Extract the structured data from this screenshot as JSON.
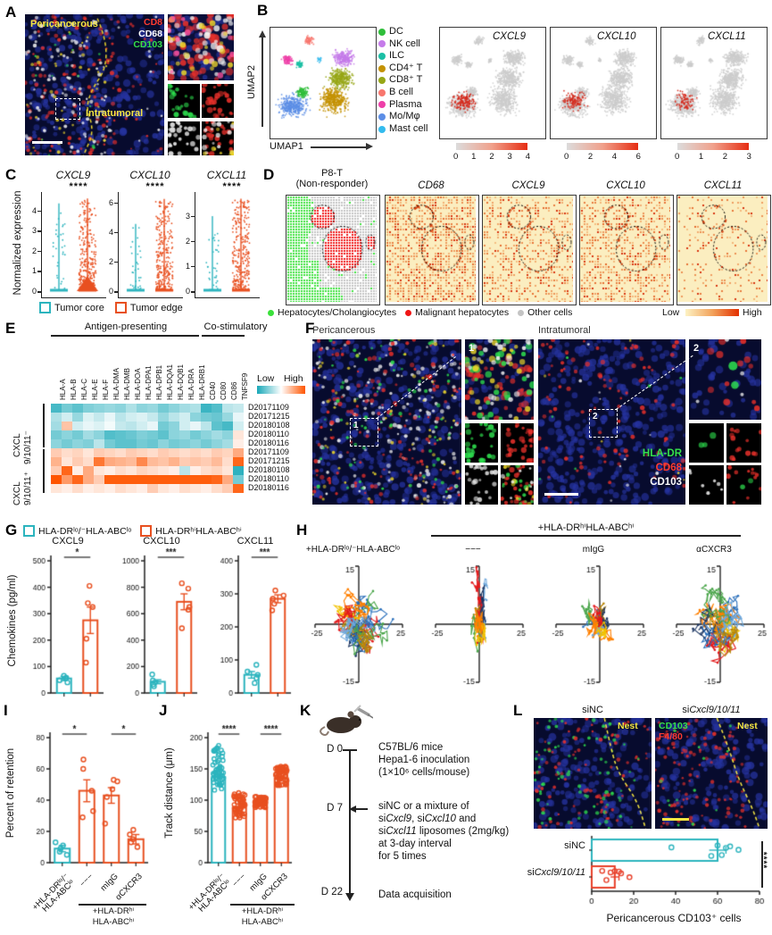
{
  "panelA": {
    "label": "A",
    "region1": "Pericancerous",
    "region2": "Intratumoral",
    "markers": [
      {
        "name": "CD8",
        "color": "#ff3b30"
      },
      {
        "name": "CD68",
        "color": "#ffffff"
      },
      {
        "name": "CD103",
        "color": "#35e04a"
      }
    ]
  },
  "panelB": {
    "label": "B",
    "x_axis": "UMAP1",
    "y_axis": "UMAP2",
    "legend": [
      {
        "name": "DC",
        "color": "#2fbe3a"
      },
      {
        "name": "NK cell",
        "color": "#c57bea"
      },
      {
        "name": "ILC",
        "color": "#1bbfa5"
      },
      {
        "name": "CD4⁺ T",
        "color": "#c49202"
      },
      {
        "name": "CD8⁺ T",
        "color": "#97a716"
      },
      {
        "name": "B cell",
        "color": "#f8766d"
      },
      {
        "name": "Plasma",
        "color": "#ee3fa8"
      },
      {
        "name": "Mo/Mφ",
        "color": "#5c8ee6"
      },
      {
        "name": "Mast cell",
        "color": "#33bbee"
      }
    ],
    "features": [
      {
        "title": "CXCL9",
        "ticks": [
          "0",
          "1",
          "2",
          "3",
          "4"
        ]
      },
      {
        "title": "CXCL10",
        "ticks": [
          "0",
          "2",
          "4",
          "6"
        ]
      },
      {
        "title": "CXCL11",
        "ticks": [
          "0",
          "1",
          "2",
          "3"
        ]
      }
    ]
  },
  "panelC": {
    "label": "C",
    "ylabel": "Normalized expression",
    "legend": [
      {
        "name": "Tumor core",
        "color": "#2cb4be"
      },
      {
        "name": "Tumor edge",
        "color": "#e85020"
      }
    ]
  },
  "panelD": {
    "label": "D",
    "title1": "P8-T",
    "title2": "(Non-responder)",
    "maps": [
      "CD68",
      "CXCL9",
      "CXCL10",
      "CXCL11"
    ],
    "legend": [
      {
        "name": "Hepatocytes/Cholangiocytes",
        "color": "#3be13b"
      },
      {
        "name": "Malignant hepatocytes",
        "color": "#f01515"
      },
      {
        "name": "Other cells",
        "color": "#c4c4c4"
      }
    ],
    "scale_low": "Low",
    "scale_high": "High"
  },
  "panelE": {
    "label": "E",
    "group1": "Antigen-presenting",
    "group2": "Co-stimulatory",
    "columns": [
      "HLA-A",
      "HLA-B",
      "HLA-C",
      "HLA-E",
      "HLA-F",
      "HLA-DMA",
      "HLA-DMB",
      "HLA-DOA",
      "HLA-DPA1",
      "HLA-DPB1",
      "HLA-DQA1",
      "HLA-DQB1",
      "HLA-DRA",
      "HLA-DRB1",
      "CD40",
      "CD80",
      "CD86",
      "TNFSF9"
    ],
    "row_group1a": "CXCL",
    "row_group1b": "9/10/11⁻",
    "row_group2a": "CXCL",
    "row_group2b": "9/10/11⁺",
    "rows": [
      "D20171109",
      "D20171215",
      "D20180108",
      "D20180110",
      "D20180116",
      "D20171109",
      "D20171215",
      "D20180108",
      "D20180110",
      "D20180116"
    ],
    "legend_low": "Low",
    "legend_high": "High",
    "matrix": [
      [
        -0.8,
        -0.6,
        -0.7,
        -0.55,
        -0.5,
        -0.45,
        -0.5,
        -0.35,
        -0.5,
        -0.45,
        -0.6,
        -0.5,
        -0.4,
        -0.35,
        -0.85,
        -0.75,
        -0.3,
        -0.25
      ],
      [
        -0.35,
        -0.2,
        -0.45,
        -0.15,
        -0.25,
        -0.1,
        -0.3,
        -0.2,
        -0.15,
        -0.25,
        -0.45,
        -0.3,
        -0.2,
        -0.5,
        -0.6,
        -0.65,
        -0.45,
        -0.1
      ],
      [
        -0.4,
        0.35,
        -0.2,
        -0.1,
        -0.15,
        -0.05,
        -0.25,
        -0.3,
        -0.2,
        -0.1,
        -0.6,
        -0.5,
        -0.2,
        -0.1,
        -0.3,
        -0.7,
        -0.8,
        -0.2
      ],
      [
        -0.6,
        -0.5,
        -0.6,
        -0.4,
        -0.5,
        -0.75,
        -0.7,
        -0.65,
        -0.55,
        -0.6,
        -0.7,
        -0.5,
        -0.45,
        -0.6,
        -0.5,
        -0.4,
        -0.5,
        0.15
      ],
      [
        -0.5,
        -0.6,
        -0.5,
        -0.55,
        -0.3,
        -0.6,
        -0.7,
        -0.7,
        -0.6,
        -0.65,
        -0.5,
        -0.6,
        -0.55,
        -0.5,
        -0.6,
        -0.5,
        -0.4,
        0.1
      ],
      [
        0.3,
        0.2,
        0.25,
        0.15,
        0.3,
        0.25,
        0.2,
        0.3,
        0.25,
        0.2,
        0.3,
        0.25,
        0.2,
        0.25,
        0.2,
        0.3,
        0.25,
        0.5
      ],
      [
        0.45,
        0.15,
        0.3,
        0.2,
        0.8,
        0.5,
        0.45,
        0.4,
        0.7,
        0.4,
        0.35,
        0.45,
        0.3,
        0.35,
        0.3,
        0.4,
        0.2,
        0.9
      ],
      [
        0.3,
        0.9,
        0.1,
        0.5,
        0.15,
        0.1,
        0.2,
        0.15,
        0.25,
        0.2,
        0.15,
        0.1,
        -0.3,
        0.1,
        0.2,
        0.25,
        0.15,
        -0.9
      ],
      [
        1,
        0.6,
        0.9,
        0.5,
        0.3,
        0.95,
        0.95,
        0.95,
        0.95,
        0.95,
        0.95,
        0.95,
        0.95,
        0.95,
        0.95,
        0.9,
        0.5,
        -0.6
      ],
      [
        0.15,
        0.1,
        0.2,
        0.1,
        0.15,
        0.1,
        0.2,
        0.15,
        0.1,
        0.3,
        0.15,
        0.1,
        0.2,
        0.15,
        0.1,
        0.2,
        0.3,
        0.9
      ]
    ]
  },
  "panelF": {
    "label": "F",
    "region1": "Pericancerous",
    "region2": "Intratumoral",
    "inset1": "1",
    "inset2": "2",
    "markers": [
      {
        "name": "HLA-DR",
        "color": "#35e04a"
      },
      {
        "name": "CD68",
        "color": "#ff3b30"
      },
      {
        "name": "CD103",
        "color": "#ffffff"
      }
    ]
  },
  "panelG": {
    "label": "G",
    "ylabel": "Chemokines (pg/ml)",
    "legend": [
      {
        "name": "HLA-DRˡᵒ/⁻HLA-ABCˡᵒ",
        "color": "#2cb4be"
      },
      {
        "name": "HLA-DRʰⁱHLA-ABCʰⁱ",
        "color": "#e85020"
      }
    ]
  },
  "panelH": {
    "label": "H",
    "group_header": "+HLA-DRʰⁱHLA-ABCʰⁱ",
    "titles": [
      "+HLA-DRˡᵒ/⁻HLA-ABCˡᵒ",
      "−−−",
      "mIgG",
      "αCXCR3"
    ]
  },
  "panelI": {
    "label": "I",
    "ylabel": "Percent of retention",
    "cat1a": "+HLA-DRˡᵒ/⁻",
    "cat1b": "HLA-ABCˡᵒ",
    "cat2": "−−−",
    "cat3": "mIgG",
    "cat4": "αCXCR3",
    "group1": "+HLA-DRʰⁱ",
    "group2": "HLA-ABCʰⁱ"
  },
  "panelJ": {
    "label": "J",
    "ylabel": "Track distance (μm)",
    "cat1a": "+HLA-DRˡᵒ/⁻",
    "cat1b": "HLA-ABCˡᵒ",
    "cat2": "−−−",
    "cat3": "mIgG",
    "cat4": "αCXCR3",
    "group1": "+HLA-DRʰⁱ",
    "group2": "HLA-ABCʰⁱ"
  },
  "panelK": {
    "label": "K",
    "t0": "D 0",
    "t7": "D 7",
    "t22": "D 22",
    "d0_line1": "C57BL/6 mice",
    "d0_line2": "Hepa1-6 inoculation",
    "d0_line3": "(1×10⁶ cells/mouse)",
    "d7_line1": "siNC or a mixture of",
    "d7_line2_parts": [
      "si",
      "Cxcl9",
      ", si",
      "Cxcl10",
      " and"
    ],
    "d7_line3_parts": [
      "si",
      "Cxcl11",
      " liposomes (2mg/kg)"
    ],
    "d7_line4": "at 3-day interval",
    "d7_line5": "for 5 times",
    "d22_text": "Data acquisition"
  },
  "panelL": {
    "label": "L",
    "title1": "siNC",
    "title2_parts": [
      "si",
      "Cxcl9/10/11"
    ],
    "img1_markers": [
      {
        "name": "Nest",
        "color": "#f5e642"
      }
    ],
    "img2_markers": [
      {
        "name": "CD103",
        "color": "#35e04a"
      },
      {
        "name": "F4/80",
        "color": "#ff3b30"
      },
      {
        "name": "Nest",
        "color": "#f5e642"
      }
    ],
    "cat1": "siNC",
    "cat2_parts": [
      "si",
      "Cxcl9/10/11"
    ],
    "xlabel": "Pericancerous CD103⁺ cells",
    "sig": "****"
  },
  "chart_data": {
    "C": {
      "type": "violin",
      "ylabel": "Normalized expression",
      "groups": [
        "Tumor core",
        "Tumor edge"
      ],
      "group_colors": [
        "#2cb4be",
        "#e85020"
      ],
      "subplots": [
        {
          "title": "CXCL9",
          "ylim": [
            0,
            4.6
          ],
          "yticks": [
            0,
            1,
            2,
            3,
            4
          ],
          "sig": "****",
          "core_max": 4.3,
          "edge_max": 4.55
        },
        {
          "title": "CXCL10",
          "ylim": [
            0,
            6.3
          ],
          "yticks": [
            0,
            2,
            4,
            6
          ],
          "sig": "****",
          "core_max": 4.5,
          "edge_max": 6.2
        },
        {
          "title": "CXCL11",
          "ylim": [
            0,
            3.7
          ],
          "yticks": [
            0,
            1,
            2,
            3
          ],
          "sig": "****",
          "core_max": 2.95,
          "edge_max": 3.65
        }
      ]
    },
    "G": {
      "type": "bar",
      "ylabel": "Chemokines (pg/ml)",
      "groups": [
        "HLA-DRˡᵒ/⁻HLA-ABCˡᵒ",
        "HLA-DRʰⁱHLA-ABCʰⁱ"
      ],
      "group_colors": [
        "#2cb4be",
        "#e85020"
      ],
      "subplots": [
        {
          "title": "CXCL9",
          "ylim": [
            0,
            500
          ],
          "yticks": [
            0,
            100,
            200,
            300,
            400,
            500
          ],
          "sig": "*",
          "values": [
            55,
            275
          ],
          "sem": [
            8,
            50
          ],
          "points": [
            [
              40,
              48,
              55,
              58,
              65
            ],
            [
              115,
              205,
              325,
              340,
              405
            ]
          ]
        },
        {
          "title": "CXCL10",
          "ylim": [
            0,
            1000
          ],
          "yticks": [
            0,
            200,
            400,
            600,
            800,
            1000
          ],
          "sig": "***",
          "values": [
            85,
            690
          ],
          "sem": [
            15,
            60
          ],
          "points": [
            [
              50,
              65,
              80,
              95,
              140
            ],
            [
              490,
              630,
              650,
              790,
              830
            ]
          ]
        },
        {
          "title": "CXCL11",
          "ylim": [
            0,
            400
          ],
          "yticks": [
            0,
            100,
            200,
            300,
            400
          ],
          "sig": "***",
          "values": [
            55,
            285
          ],
          "sem": [
            10,
            12
          ],
          "points": [
            [
              30,
              45,
              55,
              65,
              85
            ],
            [
              250,
              270,
              285,
              295,
              310
            ]
          ]
        }
      ]
    },
    "H": {
      "type": "tracks",
      "xlim": [
        -25,
        25
      ],
      "ylim": [
        -15,
        15
      ],
      "subplots": [
        {
          "title": "+HLA-DRˡᵒ/⁻HLA-ABCˡᵒ",
          "spread_x": 21,
          "spread_y": 11,
          "n_tracks": 14
        },
        {
          "title": "−−−",
          "spread_x": 6,
          "spread_y": 12,
          "n_tracks": 10
        },
        {
          "title": "mIgG",
          "spread_x": 10,
          "spread_y": 7,
          "n_tracks": 10
        },
        {
          "title": "αCXCR3",
          "spread_x": 19,
          "spread_y": 11,
          "n_tracks": 14
        }
      ],
      "track_colors": [
        "#e31a1c",
        "#ff8000",
        "#2a6fbb",
        "#6fa8dc",
        "#4ca64c",
        "#b8860b",
        "#1f3864",
        "#f2c200"
      ]
    },
    "I": {
      "type": "bar",
      "ylabel": "Percent of retention",
      "ylim": [
        0,
        80
      ],
      "yticks": [
        0,
        20,
        40,
        60,
        80
      ],
      "categories": [
        "+HLA-DRˡᵒ/⁻HLA-ABCˡᵒ",
        "−−−",
        "mIgG",
        "αCXCR3"
      ],
      "bar_colors": [
        "#2cb4be",
        "#e85020",
        "#e85020",
        "#e85020"
      ],
      "values": [
        9,
        46,
        43,
        15
      ],
      "sem": [
        2,
        7,
        5,
        3
      ],
      "points": [
        [
          5,
          7,
          9,
          11,
          13
        ],
        [
          29,
          33,
          46,
          60,
          66
        ],
        [
          25,
          42,
          47,
          52,
          53
        ],
        [
          10,
          13,
          15,
          18,
          21
        ]
      ],
      "sig": [
        {
          "pair": [
            0,
            1
          ],
          "stars": "*"
        },
        {
          "pair": [
            2,
            3
          ],
          "stars": "*"
        }
      ],
      "group_label": "+HLA-DRʰⁱ HLA-ABCʰⁱ"
    },
    "J": {
      "type": "bar",
      "ylabel": "Track distance (μm)",
      "ylim": [
        0,
        200
      ],
      "yticks": [
        0,
        50,
        100,
        150,
        200
      ],
      "categories": [
        "+HLA-DRˡᵒ/⁻HLA-ABCˡᵒ",
        "−−−",
        "mIgG",
        "αCXCR3"
      ],
      "bar_colors": [
        "#2cb4be",
        "#e85020",
        "#e85020",
        "#e85020"
      ],
      "values": [
        137,
        88,
        98,
        135
      ],
      "sem": [
        3,
        2,
        1,
        2
      ],
      "point_ranges": [
        [
          108,
          190
        ],
        [
          68,
          112
        ],
        [
          88,
          106
        ],
        [
          122,
          155
        ]
      ],
      "n_points": 55,
      "sig": [
        {
          "pair": [
            0,
            1
          ],
          "stars": "****"
        },
        {
          "pair": [
            2,
            3
          ],
          "stars": "****"
        }
      ],
      "group_label": "+HLA-DRʰⁱ HLA-ABCʰⁱ"
    },
    "L": {
      "type": "bar-horizontal",
      "xlabel": "Pericancerous CD103⁺ cells",
      "xlim": [
        0,
        80
      ],
      "xticks": [
        0,
        20,
        40,
        60,
        80
      ],
      "categories": [
        "siNC",
        "siCxcl9/10/11"
      ],
      "bar_colors": [
        "#2cb4be",
        "#e8402a"
      ],
      "values": [
        60,
        11
      ],
      "sem": [
        4,
        2
      ],
      "points": [
        [
          38,
          57,
          60,
          62,
          64,
          66,
          70
        ],
        [
          5,
          7,
          9,
          11,
          13,
          14,
          18
        ]
      ],
      "sig": "****"
    }
  }
}
